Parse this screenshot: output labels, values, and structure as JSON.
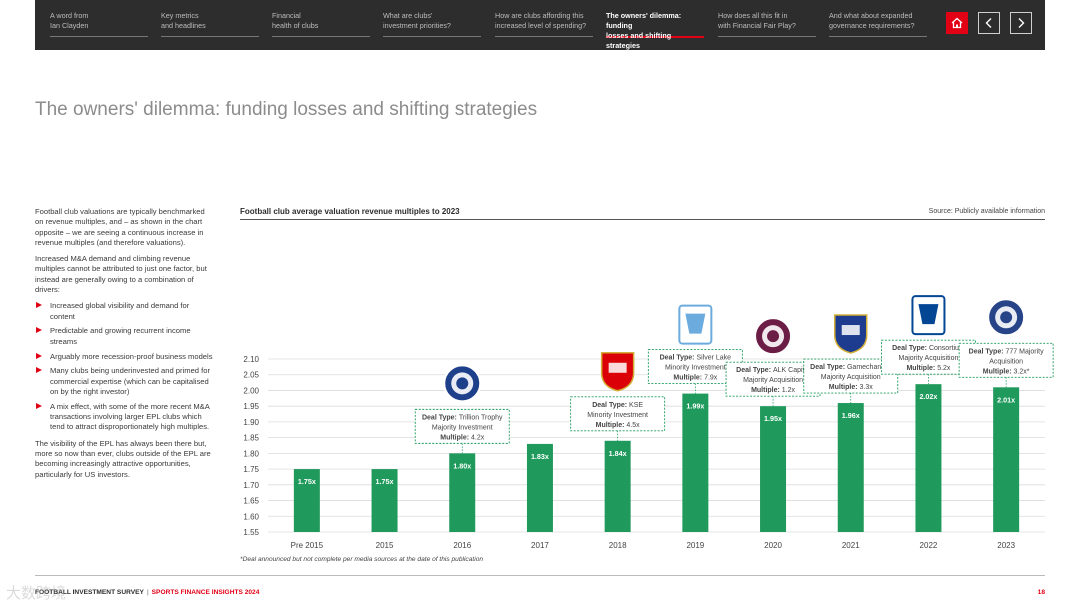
{
  "nav": {
    "items": [
      {
        "line1": "A word from",
        "line2": "Ian Clayden",
        "active": false
      },
      {
        "line1": "Key metrics",
        "line2": "and headlines",
        "active": false
      },
      {
        "line1": "Financial",
        "line2": "health of clubs",
        "active": false
      },
      {
        "line1": "What are clubs'",
        "line2": "investment priorities?",
        "active": false
      },
      {
        "line1": "How are clubs affording this",
        "line2": "increased level of spending?",
        "active": false
      },
      {
        "line1": "The owners' dilemma: funding",
        "line2": "losses and shifting strategies",
        "active": true
      },
      {
        "line1": "How does all this fit in",
        "line2": "with Financial Fair Play?",
        "active": false
      },
      {
        "line1": "And what about expanded",
        "line2": "governance requirements?",
        "active": false
      }
    ],
    "home_icon": "home-icon",
    "prev_icon": "chevron-left-icon",
    "next_icon": "chevron-right-icon",
    "accent_color": "#e20015"
  },
  "page": {
    "title": "The owners' dilemma: funding losses and shifting strategies"
  },
  "left_text": {
    "para1": "Football club valuations are typically benchmarked on revenue multiples, and – as shown in the chart opposite – we are seeing a continuous increase in revenue multiples (and therefore valuations).",
    "para2": "Increased M&A demand and climbing revenue multiples cannot be attributed to just one factor, but instead are generally owing to a combination of drivers:",
    "bullets": [
      "Increased global visibility and demand for content",
      "Predictable and growing recurrent income streams",
      "Arguably more recession-proof business models",
      "Many clubs being underinvested and primed for commercial expertise (which can be capitalised on by the right investor)",
      "A mix effect, with some of the more recent M&A transactions involving larger EPL clubs which tend to attract disproportionately high multiples."
    ],
    "para3": "The visibility of the EPL has always been there but, more so now than ever, clubs outside of the EPL are becoming increasingly attractive opportunities, particularly for US investors."
  },
  "chart_data": {
    "type": "bar",
    "title": "Football club average valuation revenue multiples to 2023",
    "source": "Source: Publicly available information",
    "categories": [
      "Pre 2015",
      "2015",
      "2016",
      "2017",
      "2018",
      "2019",
      "2020",
      "2021",
      "2022",
      "2023"
    ],
    "values": [
      1.75,
      1.75,
      1.8,
      1.83,
      1.84,
      1.99,
      1.95,
      1.96,
      2.02,
      2.01
    ],
    "value_labels": [
      "1.75x",
      "1.75x",
      "1.80x",
      "1.83x",
      "1.84x",
      "1.99x",
      "1.95x",
      "1.96x",
      "2.02x",
      "2.01x"
    ],
    "ylim": [
      1.55,
      2.1
    ],
    "yticks": [
      "1.55",
      "1.60",
      "1.65",
      "1.70",
      "1.75",
      "1.80",
      "1.85",
      "1.90",
      "1.95",
      "2.00",
      "2.05",
      "2.10"
    ],
    "bar_color": "#1f9a5c",
    "grid": true,
    "annotations": [
      {
        "category": "2016",
        "crest": "Birmingham City",
        "crest_color": "#1e3f8a",
        "deal_type": "Trillion Trophy",
        "line2": "Majority Investment",
        "multiple": "4.2x"
      },
      {
        "category": "2018",
        "crest": "Arsenal",
        "crest_color": "#db0007",
        "deal_type": "KSE",
        "line2": "Minority Investment",
        "multiple": "4.5x"
      },
      {
        "category": "2019",
        "crest": "Manchester City",
        "crest_color": "#6cabdd",
        "deal_type": "Silver Lake",
        "line2": "Minority Investment",
        "multiple": "7.9x"
      },
      {
        "category": "2020",
        "crest": "Burnley",
        "crest_color": "#6c1d45",
        "deal_type": "ALK Capital",
        "line2": "Majority Acquisition",
        "multiple": "1.2x"
      },
      {
        "category": "2021",
        "crest": "Ipswich Town",
        "crest_color": "#1d3c8f",
        "deal_type": "Gamechanger",
        "line2": "Majority Acquisition",
        "multiple": "3.3x"
      },
      {
        "category": "2022",
        "crest": "Chelsea",
        "crest_color": "#034694",
        "deal_type": "Consortium",
        "line2": "Majority Acquisition",
        "multiple": "5.2x"
      },
      {
        "category": "2023",
        "crest": "Everton",
        "crest_color": "#274488",
        "deal_type": "777 Majority",
        "line2": "Acquisition",
        "multiple": "3.2x*"
      }
    ],
    "deal_type_label": "Deal Type:",
    "multiple_label": "Multiple:"
  },
  "footnote": "*Deal announced but not complete per media sources at the date of this publication",
  "footer": {
    "left": "FOOTBALL INVESTMENT SURVEY",
    "separator": "|",
    "right": "SPORTS FINANCE INSIGHTS 2024",
    "page_number": "18"
  },
  "watermark": "大数跨境"
}
